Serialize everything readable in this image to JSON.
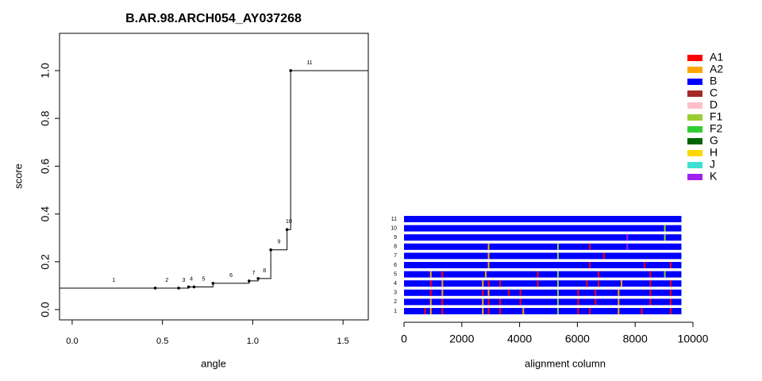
{
  "chart_data": [
    {
      "type": "step",
      "title": "B.AR.98.ARCH054_AY037268",
      "x_label": "angle",
      "y_label": "score",
      "x": [
        0.46,
        0.59,
        0.645,
        0.675,
        0.78,
        0.98,
        1.03,
        1.1,
        1.19,
        1.21
      ],
      "values": [
        0.09,
        0.09,
        0.095,
        0.095,
        0.11,
        0.12,
        0.13,
        0.25,
        0.335,
        1.0
      ],
      "segment_labels": [
        "1",
        "2",
        "3",
        "4",
        "5",
        "6",
        "7",
        "8",
        "9",
        "10",
        "11"
      ],
      "xlim": [
        -0.07,
        1.64
      ],
      "ylim": [
        -0.043,
        1.156
      ],
      "xticks": [
        {
          "value": 0,
          "label": "0.0"
        },
        {
          "value": 0.5,
          "label": "0.5"
        },
        {
          "value": 1,
          "label": "1.0"
        },
        {
          "value": 1.5,
          "label": "1.5"
        }
      ],
      "yticks": [
        {
          "value": 0,
          "label": "0.0"
        },
        {
          "value": 0.2,
          "label": "0.2"
        },
        {
          "value": 0.4,
          "label": "0.4"
        },
        {
          "value": 0.6,
          "label": "0.6"
        },
        {
          "value": 0.8,
          "label": "0.8"
        },
        {
          "value": 1,
          "label": "1.0"
        }
      ],
      "color": "#000000"
    },
    {
      "type": "alignment",
      "x_label": "alignment column",
      "xlim": [
        0,
        10000
      ],
      "xticks": [
        0,
        2000,
        4000,
        6000,
        8000,
        10000
      ],
      "base_subtype": "B",
      "rows": [
        {
          "label": "1",
          "length": 9600,
          "marks": [
            [
              700,
              "A1"
            ],
            [
              900,
              "A2"
            ],
            [
              1300,
              "A1"
            ],
            [
              2700,
              "A2"
            ],
            [
              2900,
              "A1"
            ],
            [
              3300,
              "A1"
            ],
            [
              4100,
              "A2"
            ],
            [
              5300,
              "F1"
            ],
            [
              6000,
              "A1"
            ],
            [
              6400,
              "A1"
            ],
            [
              7400,
              "A2"
            ],
            [
              8200,
              "A1"
            ],
            [
              9200,
              "A1"
            ]
          ]
        },
        {
          "label": "2",
          "length": 9600,
          "marks": [
            [
              900,
              "A2"
            ],
            [
              1300,
              "A1"
            ],
            [
              2700,
              "A2"
            ],
            [
              2900,
              "A1"
            ],
            [
              3300,
              "A1"
            ],
            [
              4000,
              "A1"
            ],
            [
              5300,
              "F1"
            ],
            [
              6000,
              "A1"
            ],
            [
              6600,
              "A1"
            ],
            [
              7400,
              "A2"
            ],
            [
              8500,
              "A1"
            ],
            [
              9200,
              "A1"
            ]
          ]
        },
        {
          "label": "3",
          "length": 9600,
          "marks": [
            [
              900,
              "A1"
            ],
            [
              1300,
              "A2"
            ],
            [
              2700,
              "A1"
            ],
            [
              2900,
              "A2"
            ],
            [
              3600,
              "A1"
            ],
            [
              4000,
              "A1"
            ],
            [
              5300,
              "F1"
            ],
            [
              6000,
              "A1"
            ],
            [
              6600,
              "A1"
            ],
            [
              7400,
              "A2"
            ],
            [
              8500,
              "A1"
            ],
            [
              9200,
              "A1"
            ]
          ]
        },
        {
          "label": "4",
          "length": 9600,
          "marks": [
            [
              900,
              "A1"
            ],
            [
              1300,
              "A2"
            ],
            [
              2700,
              "A2"
            ],
            [
              2900,
              "A1"
            ],
            [
              3300,
              "A1"
            ],
            [
              4600,
              "A1"
            ],
            [
              5300,
              "F1"
            ],
            [
              6300,
              "A1"
            ],
            [
              6700,
              "A1"
            ],
            [
              7500,
              "A2"
            ],
            [
              8500,
              "A1"
            ],
            [
              9200,
              "A1"
            ]
          ]
        },
        {
          "label": "5",
          "length": 9600,
          "marks": [
            [
              900,
              "A2"
            ],
            [
              1300,
              "A1"
            ],
            [
              2800,
              "A2"
            ],
            [
              4600,
              "A1"
            ],
            [
              5300,
              "F1"
            ],
            [
              6700,
              "A1"
            ],
            [
              8500,
              "A1"
            ],
            [
              9000,
              "F1"
            ]
          ]
        },
        {
          "label": "6",
          "length": 9600,
          "marks": [
            [
              2900,
              "A2"
            ],
            [
              6400,
              "A1"
            ],
            [
              8300,
              "A1"
            ],
            [
              9200,
              "A1"
            ]
          ]
        },
        {
          "label": "7",
          "length": 9600,
          "marks": [
            [
              2900,
              "A2"
            ],
            [
              5300,
              "F1"
            ],
            [
              6900,
              "A1"
            ]
          ]
        },
        {
          "label": "8",
          "length": 9600,
          "marks": [
            [
              2900,
              "A2"
            ],
            [
              5300,
              "F1"
            ],
            [
              6400,
              "A1"
            ],
            [
              7700,
              "K"
            ]
          ]
        },
        {
          "label": "9",
          "length": 9600,
          "marks": [
            [
              7700,
              "K"
            ],
            [
              9000,
              "F1"
            ]
          ]
        },
        {
          "label": "10",
          "length": 9600,
          "marks": [
            [
              9000,
              "F1"
            ]
          ]
        },
        {
          "label": "11",
          "length": 9600,
          "marks": []
        }
      ],
      "legend": [
        {
          "name": "A1",
          "color": "#ff0000"
        },
        {
          "name": "A2",
          "color": "#ffa500"
        },
        {
          "name": "B",
          "color": "#0000ff"
        },
        {
          "name": "C",
          "color": "#a52a2a"
        },
        {
          "name": "D",
          "color": "#ffc0cb"
        },
        {
          "name": "F1",
          "color": "#9acd32"
        },
        {
          "name": "F2",
          "color": "#32cd32"
        },
        {
          "name": "G",
          "color": "#006400"
        },
        {
          "name": "H",
          "color": "#ffd700"
        },
        {
          "name": "J",
          "color": "#40e0d0"
        },
        {
          "name": "K",
          "color": "#a020f0"
        }
      ]
    }
  ]
}
